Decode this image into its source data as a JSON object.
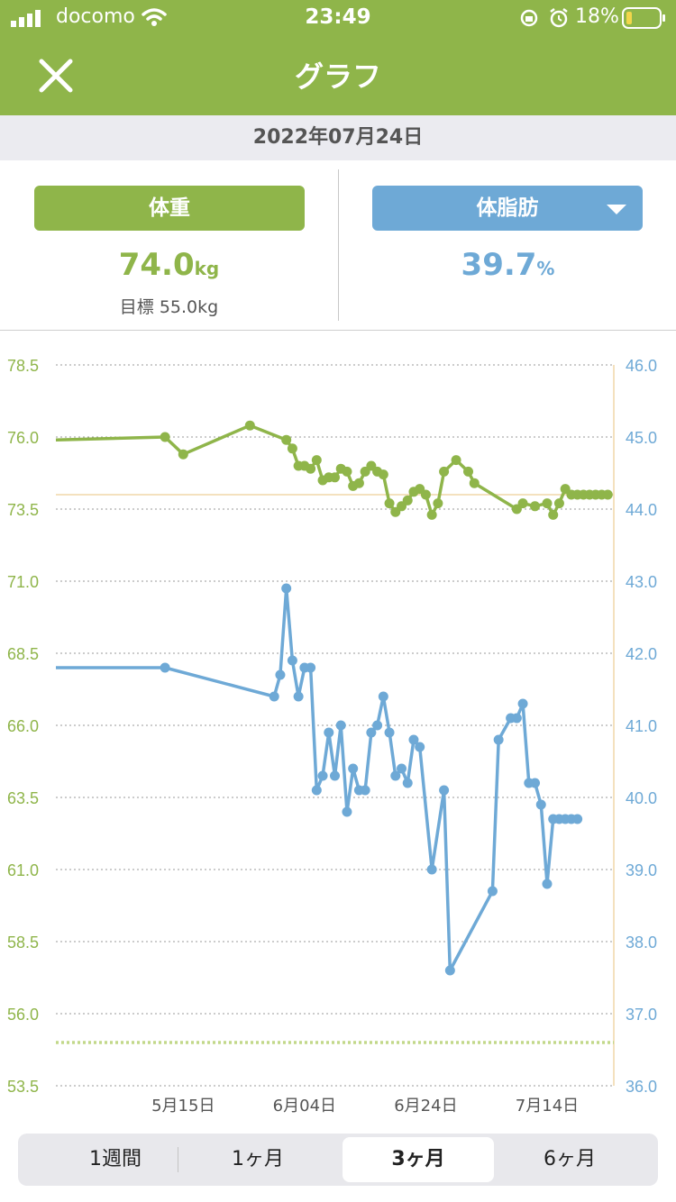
{
  "status_bar": {
    "carrier": "docomo",
    "time": "23:49",
    "battery_percent": "18%"
  },
  "header": {
    "title": "グラフ",
    "close_icon": "close-icon"
  },
  "date": "2022年07月24日",
  "weight": {
    "tab_label": "体重",
    "value": "74.0",
    "unit": "kg",
    "target_text": "目標 55.0kg"
  },
  "body_fat": {
    "tab_label": "体脂肪",
    "value": "39.7",
    "unit": "%"
  },
  "period_tabs": [
    {
      "label": "1週間",
      "selected": false
    },
    {
      "label": "1ヶ月",
      "selected": false
    },
    {
      "label": "3ヶ月",
      "selected": true
    },
    {
      "label": "6ヶ月",
      "selected": false
    }
  ],
  "colors": {
    "green": "#8fb54a",
    "blue": "#6ea9d6",
    "grid": "#9a9a9a",
    "target_line": "#f1d7a8",
    "axis": "#f1d7a8"
  },
  "chart_data": {
    "type": "line",
    "x_axis": {
      "ticks": [
        "5月15日",
        "6月04日",
        "6月24日",
        "7月14日"
      ],
      "tick_dates": [
        "2022-05-15",
        "2022-06-04",
        "2022-06-24",
        "2022-07-14"
      ],
      "range": [
        "2022-04-24",
        "2022-07-25"
      ]
    },
    "y_left": {
      "label": "",
      "ylim": [
        53.5,
        78.5
      ],
      "ticks": [
        "78.5",
        "76.0",
        "73.5",
        "71.0",
        "68.5",
        "66.0",
        "63.5",
        "61.0",
        "58.5",
        "56.0",
        "53.5"
      ]
    },
    "y_right": {
      "label": "",
      "ylim": [
        36.0,
        46.0
      ],
      "ticks": [
        "46.0",
        "45.0",
        "44.0",
        "43.0",
        "42.0",
        "41.0",
        "40.0",
        "39.0",
        "38.0",
        "37.0",
        "36.0"
      ]
    },
    "grid": true,
    "reference_lines": [
      {
        "axis": "left",
        "value": 74.0,
        "style": "solid"
      },
      {
        "axis": "left",
        "value": 55.0,
        "style": "dotted"
      }
    ],
    "series": [
      {
        "axis": "left",
        "x": [
          "2022-04-24",
          "2022-05-12",
          "2022-05-15",
          "2022-05-26",
          "2022-06-01",
          "2022-06-02",
          "2022-06-03",
          "2022-06-04",
          "2022-06-05",
          "2022-06-06",
          "2022-06-07",
          "2022-06-08",
          "2022-06-09",
          "2022-06-10",
          "2022-06-11",
          "2022-06-12",
          "2022-06-13",
          "2022-06-14",
          "2022-06-15",
          "2022-06-16",
          "2022-06-17",
          "2022-06-18",
          "2022-06-19",
          "2022-06-20",
          "2022-06-21",
          "2022-06-22",
          "2022-06-23",
          "2022-06-24",
          "2022-06-25",
          "2022-06-26",
          "2022-06-27",
          "2022-06-29",
          "2022-07-01",
          "2022-07-02",
          "2022-07-09",
          "2022-07-10",
          "2022-07-12",
          "2022-07-14",
          "2022-07-15",
          "2022-07-16",
          "2022-07-17",
          "2022-07-18",
          "2022-07-19",
          "2022-07-20",
          "2022-07-21",
          "2022-07-22",
          "2022-07-23",
          "2022-07-24"
        ],
        "values": [
          75.9,
          76.0,
          75.4,
          76.4,
          75.9,
          75.6,
          75.0,
          75.0,
          74.9,
          75.2,
          74.5,
          74.6,
          74.6,
          74.9,
          74.8,
          74.3,
          74.4,
          74.8,
          75.0,
          74.8,
          74.7,
          73.7,
          73.4,
          73.6,
          73.8,
          74.1,
          74.2,
          74.0,
          73.3,
          73.7,
          74.8,
          75.2,
          74.8,
          74.4,
          73.5,
          73.7,
          73.6,
          73.7,
          73.3,
          73.7,
          74.2,
          74.0,
          74.0,
          74.0,
          74.0,
          74.0,
          74.0,
          74.0
        ]
      },
      {
        "axis": "right",
        "x": [
          "2022-04-24",
          "2022-05-12",
          "2022-05-30",
          "2022-05-31",
          "2022-06-01",
          "2022-06-02",
          "2022-06-03",
          "2022-06-04",
          "2022-06-05",
          "2022-06-06",
          "2022-06-07",
          "2022-06-08",
          "2022-06-09",
          "2022-06-10",
          "2022-06-11",
          "2022-06-12",
          "2022-06-13",
          "2022-06-14",
          "2022-06-15",
          "2022-06-16",
          "2022-06-17",
          "2022-06-18",
          "2022-06-19",
          "2022-06-20",
          "2022-06-21",
          "2022-06-22",
          "2022-06-23",
          "2022-06-25",
          "2022-06-27",
          "2022-06-28",
          "2022-07-05",
          "2022-07-06",
          "2022-07-08",
          "2022-07-09",
          "2022-07-10",
          "2022-07-11",
          "2022-07-12",
          "2022-07-13",
          "2022-07-14",
          "2022-07-15",
          "2022-07-16",
          "2022-07-17",
          "2022-07-18",
          "2022-07-19"
        ],
        "values": [
          41.8,
          41.8,
          41.4,
          41.7,
          42.9,
          41.9,
          41.4,
          41.8,
          41.8,
          40.1,
          40.3,
          40.9,
          40.3,
          41.0,
          39.8,
          40.4,
          40.1,
          40.1,
          40.9,
          41.0,
          41.4,
          40.9,
          40.3,
          40.4,
          40.2,
          40.8,
          40.7,
          39.0,
          40.1,
          37.6,
          38.7,
          40.8,
          41.1,
          41.1,
          41.3,
          40.2,
          40.2,
          39.9,
          38.8,
          39.7,
          39.7,
          39.7,
          39.7,
          39.7
        ]
      }
    ]
  }
}
